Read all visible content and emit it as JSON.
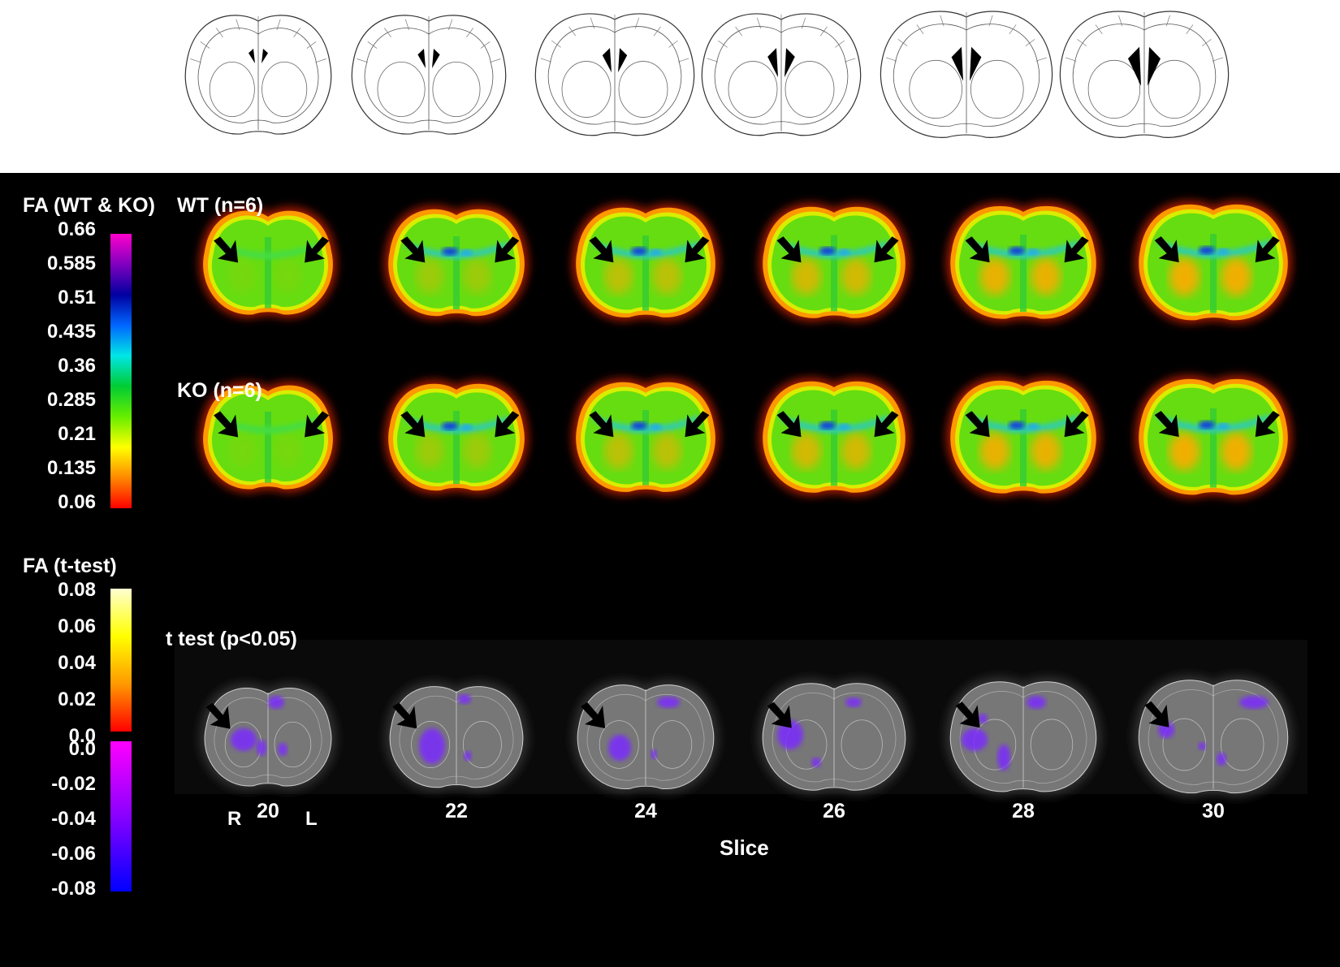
{
  "colorbar_fa": {
    "title": "FA (WT & KO)",
    "ticks": [
      "0.66",
      "0.585",
      "0.51",
      "0.435",
      "0.36",
      "0.285",
      "0.21",
      "0.135",
      "0.06"
    ],
    "colors": [
      "#ff00cc",
      "#8000c0",
      "#0000a0",
      "#0066ff",
      "#00e6e6",
      "#00cc33",
      "#66ee00",
      "#ffff00",
      "#ff8800",
      "#ff0000"
    ]
  },
  "colorbar_t": {
    "title": "FA (t-test)",
    "ticks_pos": [
      "0.08",
      "0.06",
      "0.04",
      "0.02",
      "0.0"
    ],
    "ticks_neg": [
      "0.0",
      "-0.02",
      "-0.04",
      "-0.06",
      "-0.08"
    ],
    "pos_colors": [
      "#ffffd0",
      "#ffff00",
      "#ff9900",
      "#ff0000"
    ],
    "neg_colors": [
      "#ff00ff",
      "#8800ff",
      "#0000ff"
    ]
  },
  "rows": {
    "wt": "WT (n=6)",
    "ko": "KO (n=6)",
    "ttest": "t test (p<0.05)"
  },
  "orientation": {
    "right": "R",
    "left": "L"
  },
  "slices": [
    "20",
    "22",
    "24",
    "26",
    "28",
    "30"
  ],
  "xaxis_title": "Slice",
  "colors": {
    "background": "#000000",
    "atlas_line": "#333333",
    "brain_gray": "#8a8a8a",
    "ttest_blob": "#7a2cff"
  }
}
